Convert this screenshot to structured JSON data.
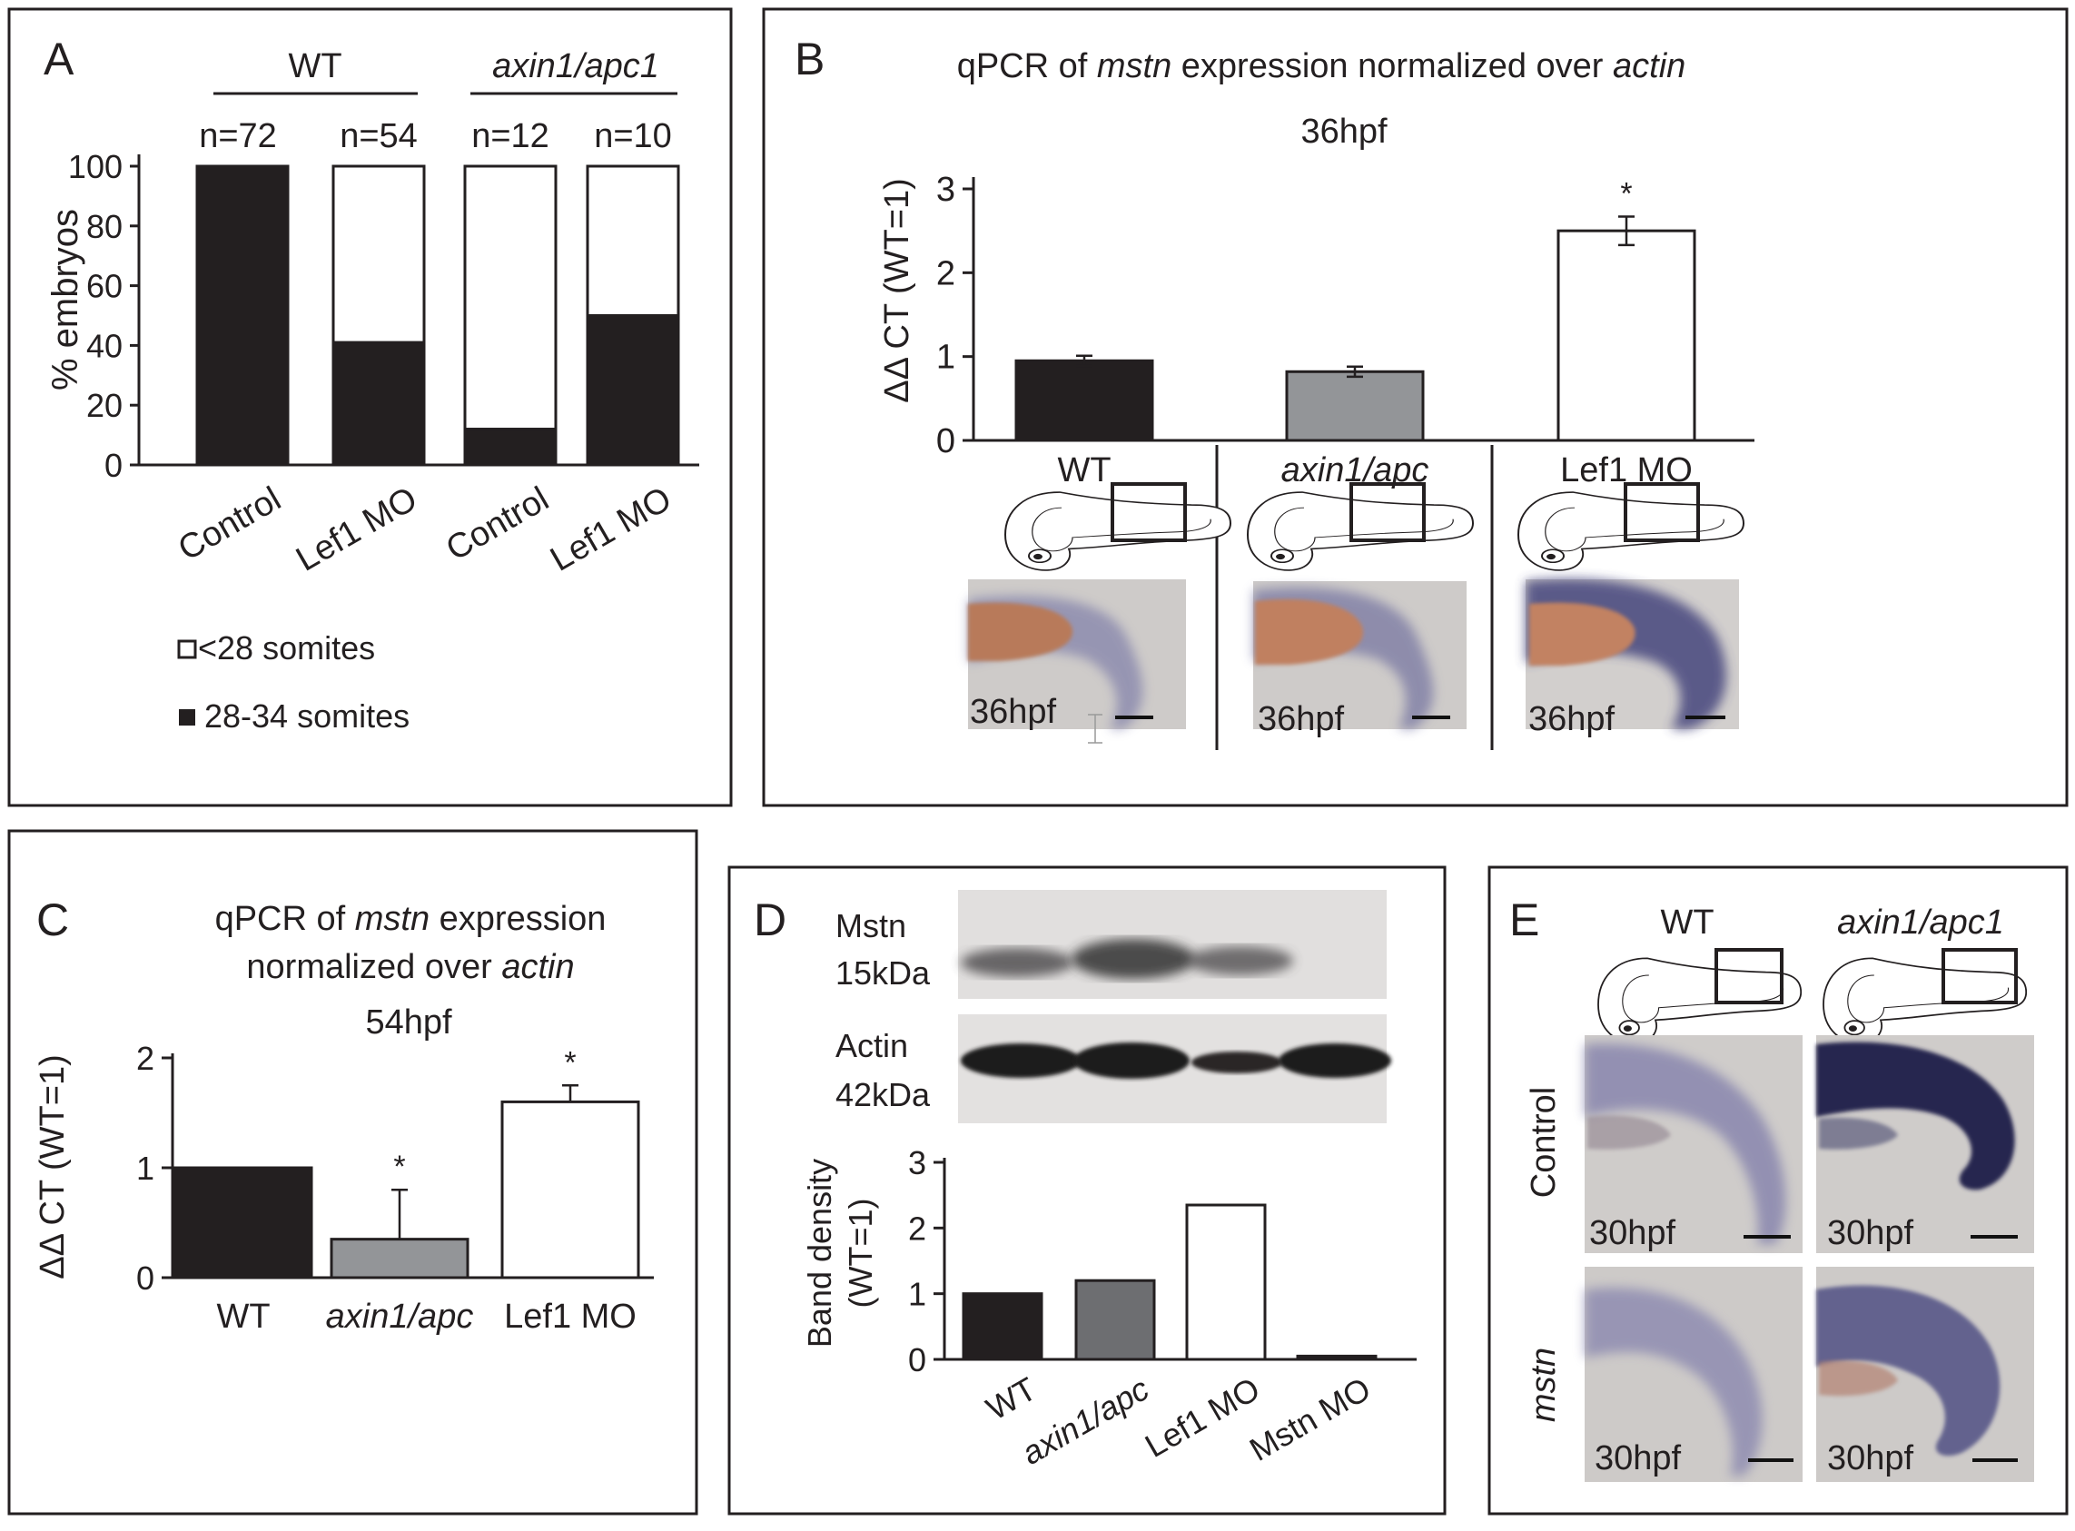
{
  "panels": {
    "A": {
      "letter": "A"
    },
    "B": {
      "letter": "B",
      "title_pre": "qPCR of ",
      "title_gene": "mstn",
      "title_mid": " expression normalized over ",
      "title_ref": "actin",
      "stage": "36hpf"
    },
    "C": {
      "letter": "C",
      "title_line1_pre": "qPCR of ",
      "title_line1_gene": "mstn",
      "title_line1_post": " expression",
      "title_line2_pre": "normalized over ",
      "title_line2_ref": "actin",
      "stage": "54hpf"
    },
    "D": {
      "letter": "D",
      "blot_mstn_line1": "Mstn",
      "blot_mstn_line2": "15kDa",
      "blot_actin_line1": "Actin",
      "blot_actin_line2": "42kDa"
    },
    "E": {
      "letter": "E",
      "col_wt": "WT",
      "col_mut": "axin1/apc1",
      "row_control": "Control",
      "row_mstn": "mstn",
      "image_labels": [
        "30hpf",
        "30hpf",
        "30hpf",
        "30hpf"
      ]
    }
  },
  "image_labels_B": [
    "36hpf",
    "36hpf",
    "36hpf"
  ],
  "image_colors": {
    "background": "#cdcac8",
    "stain": "#3b3a72",
    "yolk": "#b87a5a"
  },
  "chart_data": [
    {
      "id": "A",
      "type": "bar",
      "stacked": true,
      "group_labels": [
        "WT",
        "axin1/apc1"
      ],
      "categories": [
        "Control",
        "Lef1 MO",
        "Control",
        "Lef1 MO"
      ],
      "n_labels": [
        "n=72",
        "n=54",
        "n=12",
        "n=10"
      ],
      "series": [
        {
          "name": "28-34 somites",
          "color": "#231f20",
          "values": [
            100,
            41,
            12,
            50
          ]
        },
        {
          "name": "<28 somites",
          "color": "#ffffff",
          "values": [
            0,
            59,
            88,
            50
          ]
        }
      ],
      "ylabel": "% embryos",
      "ylim": [
        0,
        100
      ],
      "yticks": [
        0,
        20,
        40,
        60,
        80,
        100
      ],
      "legend": [
        "<28 somites",
        "28-34 somites"
      ],
      "legend_position": "bottom-left"
    },
    {
      "id": "B",
      "type": "bar",
      "categories": [
        "WT",
        "axin1/apc",
        "Lef1 MO"
      ],
      "values": [
        0.95,
        0.82,
        2.5
      ],
      "errors": [
        0.06,
        0.06,
        0.17
      ],
      "colors": [
        "#231f20",
        "#939598",
        "#ffffff"
      ],
      "significance": [
        "",
        "",
        "*"
      ],
      "ylabel": "ΔΔ CT (WT=1)",
      "ylim": [
        0,
        3
      ],
      "yticks": [
        0,
        1,
        2,
        3
      ]
    },
    {
      "id": "C",
      "type": "bar",
      "categories": [
        "WT",
        "axin1/apc",
        "Lef1 MO"
      ],
      "values": [
        1.0,
        0.35,
        1.6
      ],
      "errors": [
        0,
        0.45,
        0.15
      ],
      "colors": [
        "#231f20",
        "#939598",
        "#ffffff"
      ],
      "significance": [
        "",
        "*",
        "*"
      ],
      "ylabel": "ΔΔ CT (WT=1)",
      "ylim": [
        0,
        2
      ],
      "yticks": [
        0,
        1,
        2
      ]
    },
    {
      "id": "D",
      "type": "bar",
      "categories": [
        "WT",
        "axin1/apc",
        "Lef1 MO",
        "Mstn MO"
      ],
      "values": [
        1.0,
        1.2,
        2.35,
        0.05
      ],
      "colors": [
        "#231f20",
        "#6d6e71",
        "#ffffff",
        "#231f20"
      ],
      "ylabel_line1": "Band density",
      "ylabel_line2": "(WT=1)",
      "ylim": [
        0,
        3
      ],
      "yticks": [
        0,
        1,
        2,
        3
      ]
    }
  ]
}
